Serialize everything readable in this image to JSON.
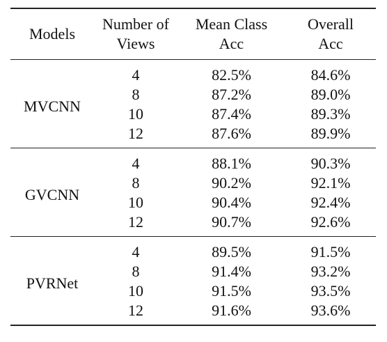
{
  "table": {
    "headers": {
      "models": "Models",
      "views": [
        "Number of",
        "Views"
      ],
      "mean_class_acc": [
        "Mean Class",
        "Acc"
      ],
      "overall_acc": [
        "Overall",
        "Acc"
      ]
    },
    "groups": [
      {
        "model": "MVCNN",
        "rows": [
          {
            "views": "4",
            "mca": "82.5%",
            "oa": "84.6%"
          },
          {
            "views": "8",
            "mca": "87.2%",
            "oa": "89.0%"
          },
          {
            "views": "10",
            "mca": "87.4%",
            "oa": "89.3%"
          },
          {
            "views": "12",
            "mca": "87.6%",
            "oa": "89.9%"
          }
        ]
      },
      {
        "model": "GVCNN",
        "rows": [
          {
            "views": "4",
            "mca": "88.1%",
            "oa": "90.3%"
          },
          {
            "views": "8",
            "mca": "90.2%",
            "oa": "92.1%"
          },
          {
            "views": "10",
            "mca": "90.4%",
            "oa": "92.4%"
          },
          {
            "views": "12",
            "mca": "90.7%",
            "oa": "92.6%"
          }
        ]
      },
      {
        "model": "PVRNet",
        "rows": [
          {
            "views": "4",
            "mca": "89.5%",
            "oa": "91.5%"
          },
          {
            "views": "8",
            "mca": "91.4%",
            "oa": "93.2%"
          },
          {
            "views": "10",
            "mca": "91.5%",
            "oa": "93.5%"
          },
          {
            "views": "12",
            "mca": "91.6%",
            "oa": "93.6%"
          }
        ]
      }
    ]
  }
}
